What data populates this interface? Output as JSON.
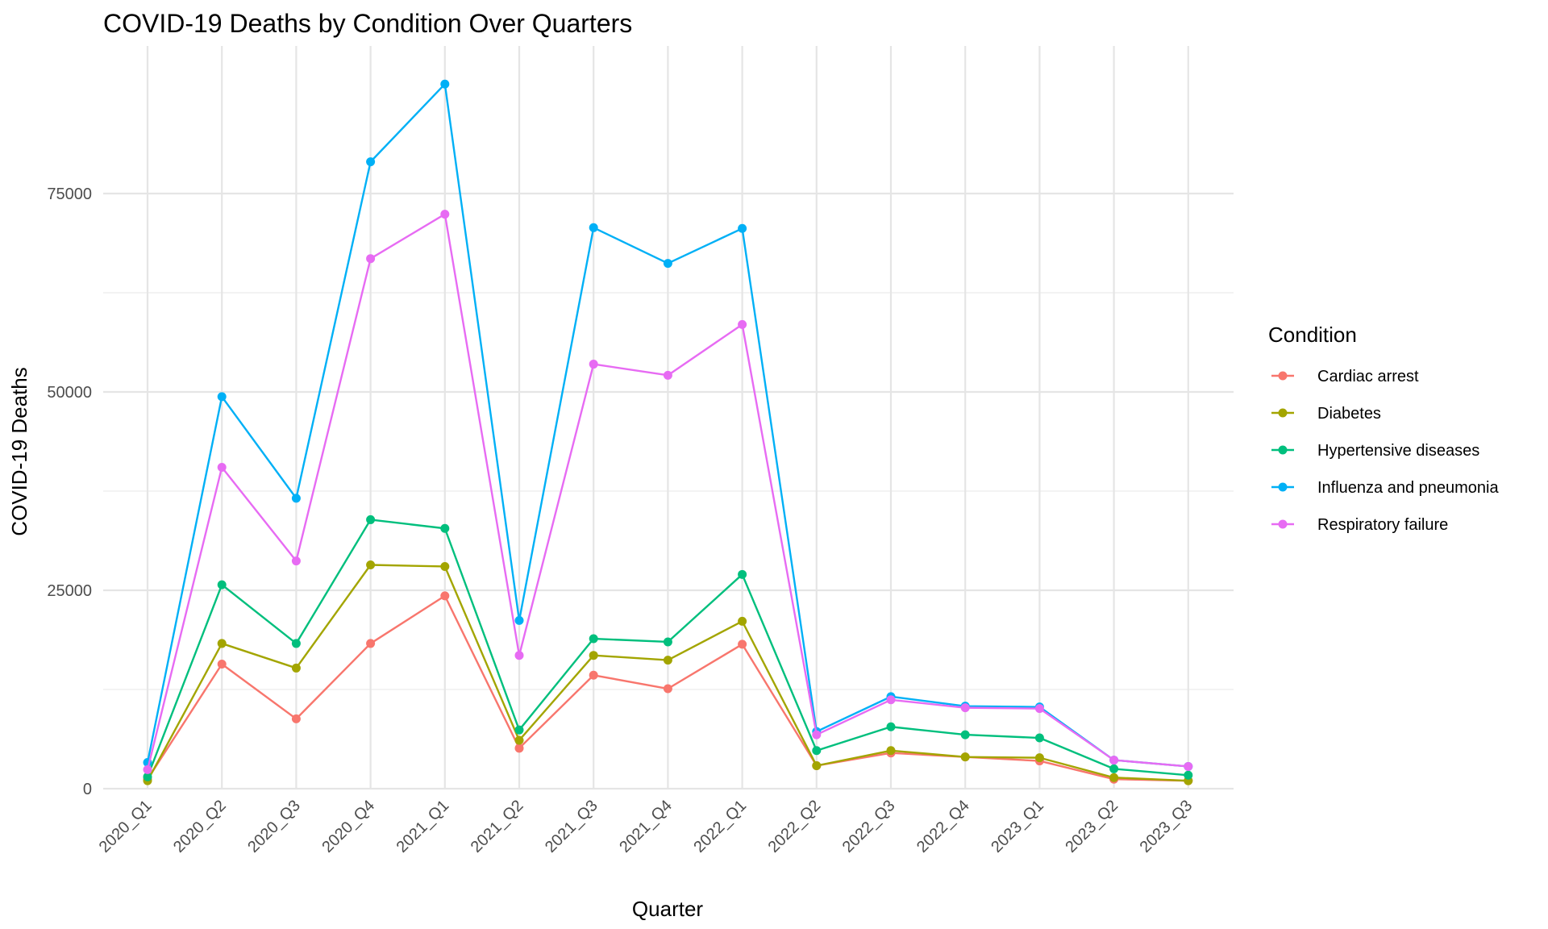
{
  "chart_data": {
    "type": "line",
    "title": "COVID-19 Deaths by Condition Over Quarters",
    "xlabel": "Quarter",
    "ylabel": "COVID-19 Deaths",
    "ylim": [
      0,
      87000
    ],
    "yticks": [
      0,
      25000,
      50000,
      75000
    ],
    "grid": true,
    "legend_title": "Condition",
    "legend_position": "right",
    "categories": [
      "2020_Q1",
      "2020_Q2",
      "2020_Q3",
      "2020_Q4",
      "2021_Q1",
      "2021_Q2",
      "2021_Q3",
      "2021_Q4",
      "2022_Q1",
      "2022_Q2",
      "2022_Q3",
      "2022_Q4",
      "2023_Q1",
      "2023_Q2",
      "2023_Q3"
    ],
    "series": [
      {
        "name": "Cardiac arrest",
        "color": "#F8766D",
        "values": [
          1200,
          15700,
          8800,
          18300,
          24300,
          5100,
          14300,
          12600,
          18200,
          2900,
          4500,
          4000,
          3500,
          1200,
          1000
        ]
      },
      {
        "name": "Diabetes",
        "color": "#A3A500",
        "values": [
          1000,
          18300,
          15200,
          28200,
          28000,
          6100,
          16800,
          16200,
          21100,
          2900,
          4800,
          4000,
          3900,
          1400,
          1000
        ]
      },
      {
        "name": "Hypertensive diseases",
        "color": "#00BF7D",
        "values": [
          1500,
          25700,
          18300,
          33900,
          32800,
          7400,
          18900,
          18500,
          27000,
          4800,
          7800,
          6800,
          6400,
          2500,
          1700
        ]
      },
      {
        "name": "Influenza and pneumonia",
        "color": "#00B0F6",
        "values": [
          3300,
          49400,
          36600,
          79000,
          88800,
          21200,
          70700,
          66200,
          70600,
          7200,
          11600,
          10400,
          10300,
          3600,
          2800
        ]
      },
      {
        "name": "Respiratory failure",
        "color": "#E76BF3",
        "values": [
          2400,
          40500,
          28700,
          66800,
          72400,
          16800,
          53500,
          52100,
          58500,
          6800,
          11200,
          10200,
          10100,
          3600,
          2800
        ]
      }
    ]
  }
}
